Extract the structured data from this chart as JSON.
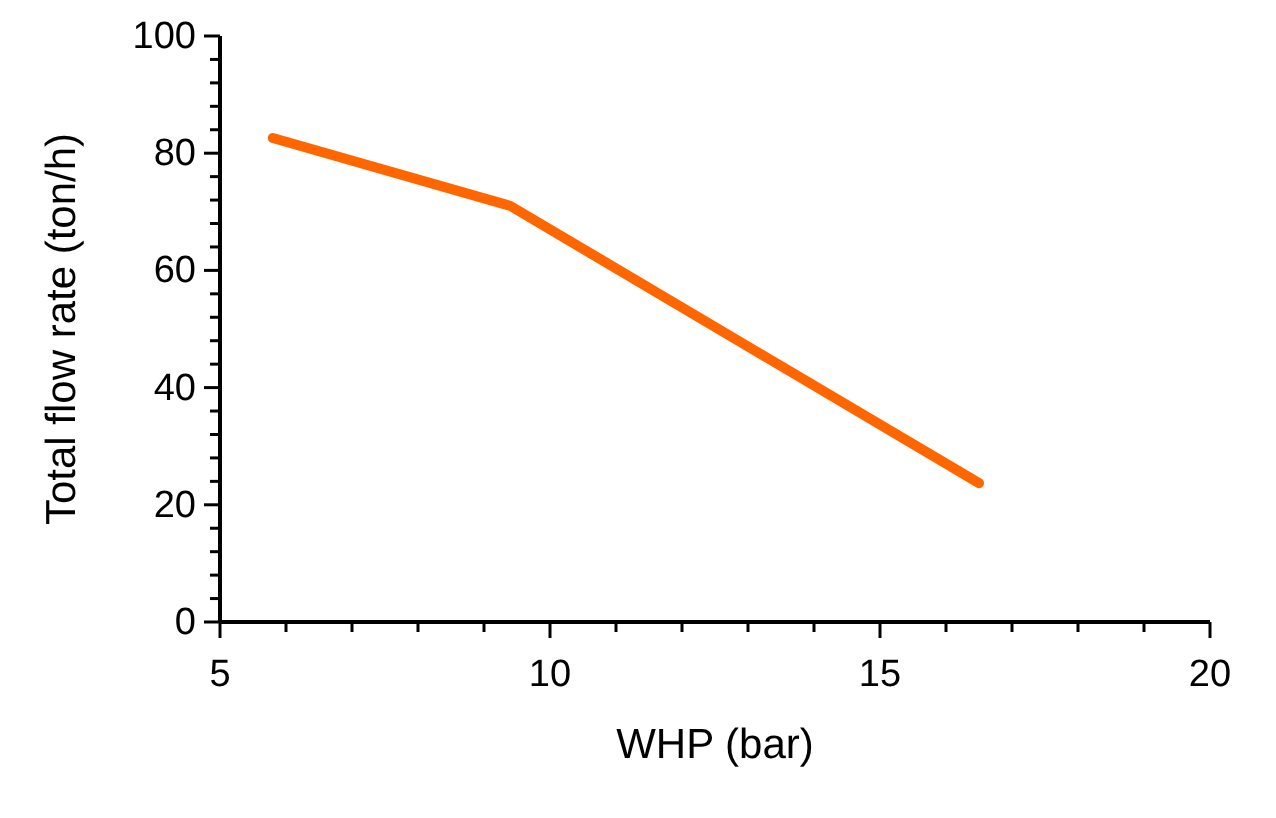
{
  "chart_data": {
    "type": "line",
    "xlabel": "WHP (bar)",
    "ylabel": "Total flow rate (ton/h)",
    "x": [
      5.8,
      9.4,
      16.5
    ],
    "series": [
      {
        "color": "#ff6600",
        "values": [
          82.6,
          71,
          23.7
        ]
      }
    ],
    "xlim": [
      5,
      20
    ],
    "ylim": [
      0,
      100
    ],
    "xticks": [
      5,
      {
        "value": 6,
        "label": null
      },
      {
        "value": 7,
        "label": null
      },
      {
        "value": 8,
        "label": null
      },
      {
        "value": 9,
        "label": null
      },
      10,
      {
        "value": 11,
        "label": null
      },
      {
        "value": 12,
        "label": null
      },
      {
        "value": 13,
        "label": null
      },
      {
        "value": 14,
        "label": null
      },
      15,
      {
        "value": 16,
        "label": null
      },
      {
        "value": 17,
        "label": null
      },
      {
        "value": 18,
        "label": null
      },
      {
        "value": 19,
        "label": null
      },
      20
    ],
    "yticks": [
      0,
      {
        "value": 4,
        "label": null
      },
      {
        "value": 8,
        "label": null
      },
      {
        "value": 12,
        "label": null
      },
      {
        "value": 16,
        "label": null
      },
      20,
      {
        "value": 24,
        "label": null
      },
      {
        "value": 28,
        "label": null
      },
      {
        "value": 32,
        "label": null
      },
      {
        "value": 36,
        "label": null
      },
      40,
      {
        "value": 44,
        "label": null
      },
      {
        "value": 48,
        "label": null
      },
      {
        "value": 52,
        "label": null
      },
      {
        "value": 56,
        "label": null
      },
      60,
      {
        "value": 64,
        "label": null
      },
      {
        "value": 68,
        "label": null
      },
      {
        "value": 72,
        "label": null
      },
      {
        "value": 76,
        "label": null
      },
      80,
      {
        "value": 84,
        "label": null
      },
      {
        "value": 88,
        "label": null
      },
      {
        "value": 92,
        "label": null
      },
      {
        "value": 96,
        "label": null
      },
      100
    ],
    "grid": false,
    "legend": false,
    "marker": "none",
    "line_style": "solid"
  }
}
